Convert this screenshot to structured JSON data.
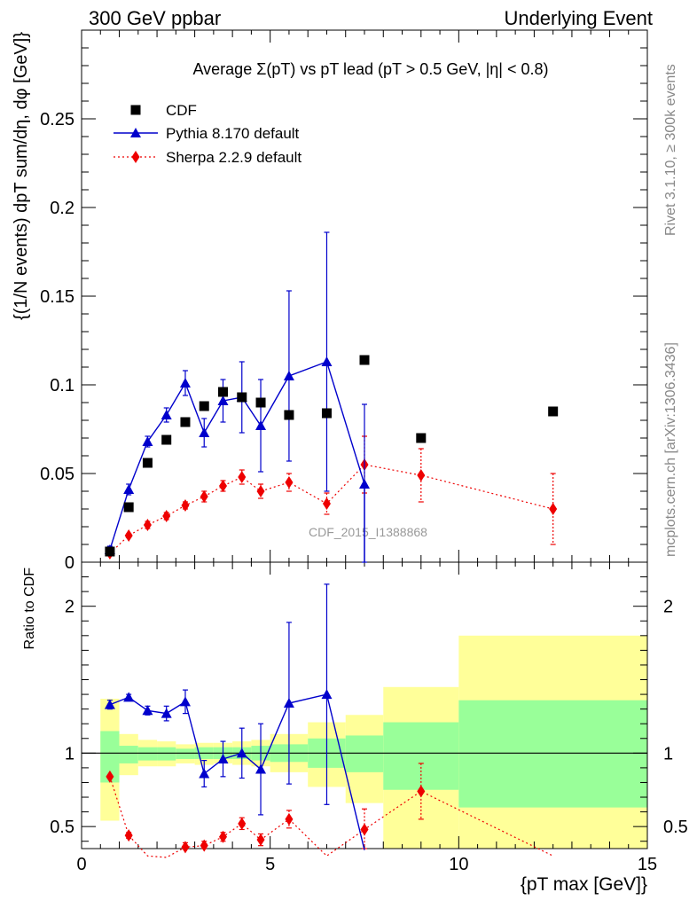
{
  "header": {
    "left": "300 GeV ppbar",
    "right": "Underlying Event"
  },
  "side_labels": {
    "upper": "Rivet 3.1.10, ≥ 300k events",
    "lower": "mcplots.cern.ch [arXiv:1306.3436]"
  },
  "chart_data": {
    "type": "scatter",
    "title": "Average Σ(pT) vs pT lead (pT > 0.5 GeV, |η| < 0.8)",
    "xlabel": "{pT max [GeV]}",
    "ylabel": "{(1/N events) dpT sum/dη, dφ [GeV]}",
    "ratio_ylabel": "Ratio to CDF",
    "watermark": "CDF_2015_I1388868",
    "xlim": [
      0,
      15
    ],
    "ylim": [
      0,
      0.3
    ],
    "ratio_ylim": [
      0.35,
      2.3
    ],
    "x_ticks": [
      "0",
      "5",
      "10",
      "15"
    ],
    "y_ticks": [
      "0",
      "0.05",
      "0.1",
      "0.15",
      "0.2",
      "0.25"
    ],
    "ratio_ticks": [
      "0.5",
      "1",
      "2"
    ],
    "legend_position": "top-left",
    "series": [
      {
        "name": "CDF",
        "color": "#000000",
        "marker": "square",
        "x": [
          0.75,
          1.25,
          1.75,
          2.25,
          2.75,
          3.25,
          3.75,
          4.25,
          4.75,
          5.5,
          6.5,
          7.5,
          9,
          12.5
        ],
        "y": [
          0.006,
          0.031,
          0.056,
          0.069,
          0.079,
          0.088,
          0.096,
          0.093,
          0.09,
          0.083,
          0.084,
          0.114,
          0.07,
          0.085
        ]
      },
      {
        "name": "Pythia 8.170 default",
        "color": "#0000cc",
        "marker": "triangle",
        "x": [
          0.75,
          1.25,
          1.75,
          2.25,
          2.75,
          3.25,
          3.75,
          4.25,
          4.75,
          5.5,
          6.5,
          7.5
        ],
        "y": [
          0.007,
          0.041,
          0.068,
          0.083,
          0.101,
          0.073,
          0.091,
          0.093,
          0.077,
          0.105,
          0.113,
          0.044
        ],
        "err": [
          0.002,
          0.003,
          0.003,
          0.004,
          0.007,
          0.008,
          0.012,
          0.02,
          0.026,
          0.048,
          0.073,
          0.045
        ],
        "ratio": [
          1.33,
          1.38,
          1.29,
          1.27,
          1.35,
          0.86,
          0.96,
          1.0,
          0.89,
          1.34,
          1.4,
          0.34
        ],
        "ratio_err": [
          0.03,
          0.02,
          0.03,
          0.05,
          0.08,
          0.09,
          0.12,
          0.17,
          0.31,
          0.55,
          0.75,
          0.45
        ]
      },
      {
        "name": "Sherpa 2.2.9 default",
        "color": "#ee0000",
        "marker": "diamond",
        "x": [
          0.75,
          1.25,
          1.75,
          2.25,
          2.75,
          3.25,
          3.75,
          4.25,
          4.75,
          5.5,
          6.5,
          7.5,
          9,
          12.5
        ],
        "y": [
          0.005,
          0.015,
          0.021,
          0.026,
          0.032,
          0.037,
          0.043,
          0.048,
          0.04,
          0.045,
          0.033,
          0.055,
          0.049,
          0.03
        ],
        "err": [
          0.001,
          0.001,
          0.002,
          0.002,
          0.002,
          0.003,
          0.003,
          0.004,
          0.004,
          0.005,
          0.006,
          0.016,
          0.015,
          0.02
        ],
        "ratio": [
          0.84,
          0.44,
          0.3,
          0.29,
          0.36,
          0.37,
          0.43,
          0.52,
          0.41,
          0.55,
          0.3,
          0.48,
          0.74,
          0.3
        ],
        "ratio_err": [
          0.01,
          0.02,
          0.03,
          0.03,
          0.03,
          0.03,
          0.03,
          0.04,
          0.04,
          0.06,
          0.07,
          0.14,
          0.19,
          0.2
        ]
      }
    ],
    "ratio_bands": [
      {
        "x0": 0.5,
        "x1": 1.0,
        "y1_lo": 0.8,
        "y1_hi": 1.15,
        "y2_lo": 0.54,
        "y2_hi": 1.37
      },
      {
        "x0": 1.0,
        "x1": 1.5,
        "y1_lo": 0.93,
        "y1_hi": 1.05,
        "y2_lo": 0.85,
        "y2_hi": 1.13
      },
      {
        "x0": 1.5,
        "x1": 2.0,
        "y1_lo": 0.95,
        "y1_hi": 1.04,
        "y2_lo": 0.91,
        "y2_hi": 1.09
      },
      {
        "x0": 2.0,
        "x1": 2.5,
        "y1_lo": 0.95,
        "y1_hi": 1.04,
        "y2_lo": 0.91,
        "y2_hi": 1.08
      },
      {
        "x0": 2.5,
        "x1": 3.0,
        "y1_lo": 0.96,
        "y1_hi": 1.03,
        "y2_lo": 0.93,
        "y2_hi": 1.06
      },
      {
        "x0": 3.0,
        "x1": 3.5,
        "y1_lo": 0.96,
        "y1_hi": 1.04,
        "y2_lo": 0.92,
        "y2_hi": 1.07
      },
      {
        "x0": 3.5,
        "x1": 4.0,
        "y1_lo": 0.96,
        "y1_hi": 1.04,
        "y2_lo": 0.93,
        "y2_hi": 1.07
      },
      {
        "x0": 4.0,
        "x1": 4.5,
        "y1_lo": 0.96,
        "y1_hi": 1.04,
        "y2_lo": 0.92,
        "y2_hi": 1.08
      },
      {
        "x0": 4.5,
        "x1": 5.0,
        "y1_lo": 0.95,
        "y1_hi": 1.05,
        "y2_lo": 0.91,
        "y2_hi": 1.09
      },
      {
        "x0": 5.0,
        "x1": 6.0,
        "y1_lo": 0.94,
        "y1_hi": 1.06,
        "y2_lo": 0.87,
        "y2_hi": 1.13
      },
      {
        "x0": 6.0,
        "x1": 7.0,
        "y1_lo": 0.9,
        "y1_hi": 1.1,
        "y2_lo": 0.77,
        "y2_hi": 1.21
      },
      {
        "x0": 7.0,
        "x1": 8.0,
        "y1_lo": 0.87,
        "y1_hi": 1.12,
        "y2_lo": 0.66,
        "y2_hi": 1.26
      },
      {
        "x0": 8.0,
        "x1": 10.0,
        "y1_lo": 0.75,
        "y1_hi": 1.21,
        "y2_lo": 0.3,
        "y2_hi": 1.45
      },
      {
        "x0": 10.0,
        "x1": 15.0,
        "y1_lo": 0.63,
        "y1_hi": 1.36,
        "y2_lo": 0.3,
        "y2_hi": 1.8
      }
    ]
  }
}
